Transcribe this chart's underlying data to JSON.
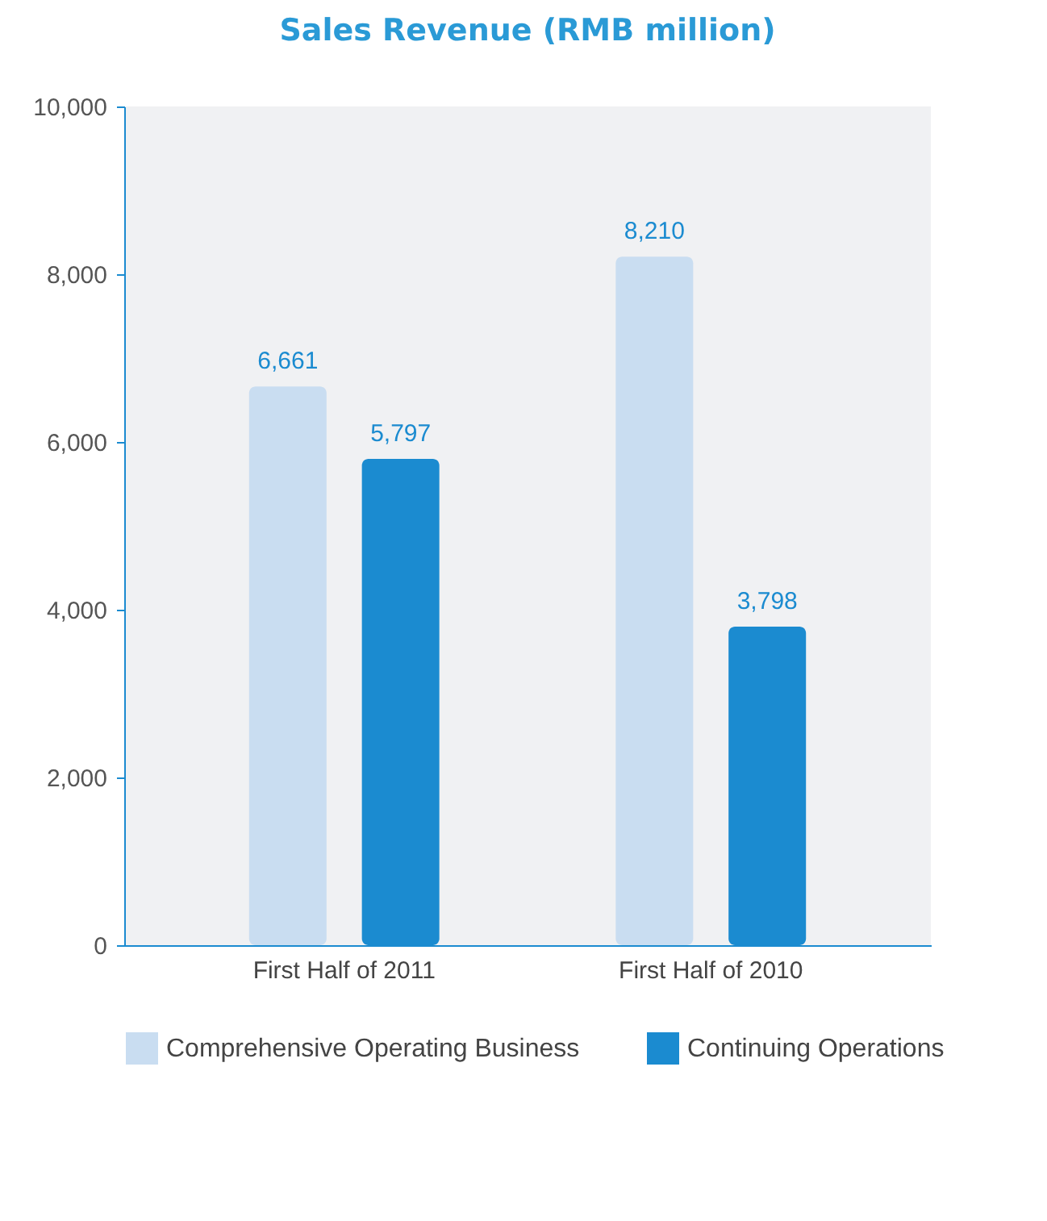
{
  "chart_data": {
    "type": "bar",
    "title": "Sales Revenue (RMB million)",
    "categories": [
      "First Half of 2011",
      "First Half of 2010"
    ],
    "series": [
      {
        "name": "Comprehensive Operating Business",
        "color": "#c9ddf1",
        "values": [
          6661,
          8210
        ],
        "value_labels": [
          "6,661",
          "8,210"
        ]
      },
      {
        "name": "Continuing Operations",
        "color": "#1b8bd0",
        "values": [
          5797,
          3798
        ],
        "value_labels": [
          "5,797",
          "3,798"
        ]
      }
    ],
    "ylim": [
      0,
      10000
    ],
    "yticks": [
      {
        "value": 0,
        "label": "0"
      },
      {
        "value": 2000,
        "label": "2,000"
      },
      {
        "value": 4000,
        "label": "4,000"
      },
      {
        "value": 6000,
        "label": "6,000"
      },
      {
        "value": 8000,
        "label": "8,000"
      },
      {
        "value": 10000,
        "label": "10,000"
      }
    ],
    "grid": false,
    "legend": "bottom"
  }
}
